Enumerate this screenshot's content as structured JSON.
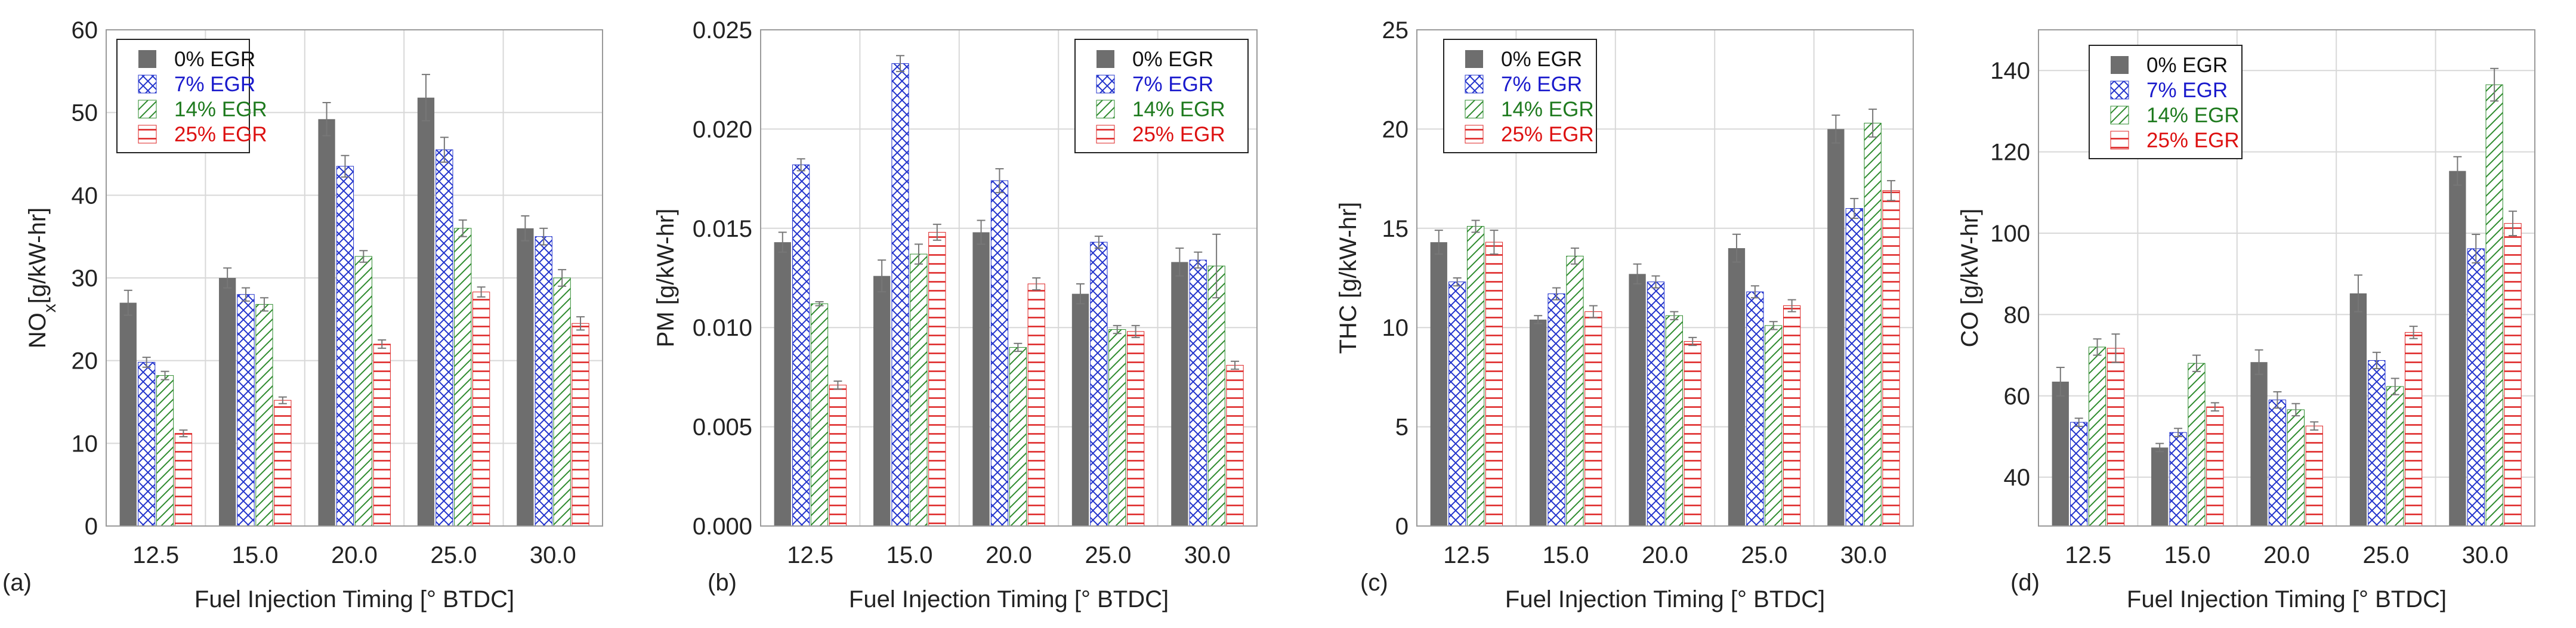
{
  "series_styles": [
    {
      "name": "0% EGR",
      "fill": "#6e6e6e",
      "stroke": "#555555",
      "text": "#111111",
      "pattern": "solid"
    },
    {
      "name": "7% EGR",
      "fill": "#ffffff",
      "stroke": "#2233cc",
      "text": "#1a1acc",
      "pattern": "cross"
    },
    {
      "name": "14% EGR",
      "fill": "#ffffff",
      "stroke": "#2e8b2e",
      "text": "#1e7a1e",
      "pattern": "diag"
    },
    {
      "name": "25% EGR",
      "fill": "#ffffff",
      "stroke": "#dd2222",
      "text": "#dd1111",
      "pattern": "horiz"
    }
  ],
  "chart_data": [
    {
      "panel": "(a)",
      "type": "bar",
      "categories": [
        "12.5",
        "15.0",
        "20.0",
        "25.0",
        "30.0"
      ],
      "xlabel": "Fuel Injection Timing [° BTDC]",
      "ylabel": "NO",
      "ylabel_sub": "x",
      "ylabel_tail": "[g/kW-hr]",
      "ylim": [
        0,
        60
      ],
      "yticks": [
        "0",
        "10",
        "20",
        "30",
        "40",
        "50",
        "60"
      ],
      "yticks_values": [
        0,
        10,
        20,
        30,
        40,
        50,
        60
      ],
      "legend": "top-left",
      "grid": true,
      "series": [
        {
          "name": "0% EGR",
          "values": [
            27.0,
            30.0,
            49.2,
            51.8,
            36.0
          ],
          "errors": [
            1.5,
            1.2,
            2.0,
            2.8,
            1.5
          ]
        },
        {
          "name": "7% EGR",
          "values": [
            19.8,
            28.0,
            43.5,
            45.5,
            35.0
          ],
          "errors": [
            0.6,
            0.8,
            1.3,
            1.5,
            1.0
          ]
        },
        {
          "name": "14% EGR",
          "values": [
            18.2,
            26.8,
            32.6,
            36.0,
            30.0
          ],
          "errors": [
            0.5,
            0.8,
            0.7,
            1.0,
            1.0
          ]
        },
        {
          "name": "25% EGR",
          "values": [
            11.2,
            15.2,
            22.0,
            28.3,
            24.5
          ],
          "errors": [
            0.4,
            0.4,
            0.5,
            0.6,
            0.8
          ]
        }
      ]
    },
    {
      "panel": "(b)",
      "type": "bar",
      "categories": [
        "12.5",
        "15.0",
        "20.0",
        "25.0",
        "30.0"
      ],
      "xlabel": "Fuel Injection Timing [° BTDC]",
      "ylabel": "PM [g/kW-hr]",
      "ylabel_sub": "",
      "ylabel_tail": "",
      "ylim": [
        0,
        0.025
      ],
      "yticks": [
        "0.000",
        "0.005",
        "0.010",
        "0.015",
        "0.020",
        "0.025"
      ],
      "yticks_values": [
        0,
        0.005,
        0.01,
        0.015,
        0.02,
        0.025
      ],
      "legend": "top-right",
      "grid": true,
      "series": [
        {
          "name": "0% EGR",
          "values": [
            0.0143,
            0.0126,
            0.0148,
            0.0117,
            0.0133
          ],
          "errors": [
            0.0005,
            0.0008,
            0.0006,
            0.0005,
            0.0007
          ]
        },
        {
          "name": "7% EGR",
          "values": [
            0.0182,
            0.0233,
            0.0174,
            0.0143,
            0.0134
          ],
          "errors": [
            0.0003,
            0.0004,
            0.0006,
            0.0003,
            0.0004
          ]
        },
        {
          "name": "14% EGR",
          "values": [
            0.0112,
            0.0137,
            0.009,
            0.0099,
            0.0131
          ],
          "errors": [
            0.0001,
            0.0005,
            0.0002,
            0.0002,
            0.0016
          ]
        },
        {
          "name": "25% EGR",
          "values": [
            0.0071,
            0.0148,
            0.0122,
            0.0098,
            0.0081
          ],
          "errors": [
            0.0002,
            0.0004,
            0.0003,
            0.0003,
            0.0002
          ]
        }
      ]
    },
    {
      "panel": "(c)",
      "type": "bar",
      "categories": [
        "12.5",
        "15.0",
        "20.0",
        "25.0",
        "30.0"
      ],
      "xlabel": "Fuel Injection Timing [° BTDC]",
      "ylabel": "THC [g/kW-hr]",
      "ylabel_sub": "",
      "ylabel_tail": "",
      "ylim": [
        0,
        25
      ],
      "yticks": [
        "0",
        "5",
        "10",
        "15",
        "20",
        "25"
      ],
      "yticks_values": [
        0,
        5,
        10,
        15,
        20,
        25
      ],
      "legend": "top-left",
      "grid": true,
      "series": [
        {
          "name": "0% EGR",
          "values": [
            14.3,
            10.4,
            12.7,
            14.0,
            20.0
          ],
          "errors": [
            0.6,
            0.2,
            0.5,
            0.7,
            0.7
          ]
        },
        {
          "name": "7% EGR",
          "values": [
            12.3,
            11.7,
            12.3,
            11.8,
            16.0
          ],
          "errors": [
            0.2,
            0.3,
            0.3,
            0.3,
            0.5
          ]
        },
        {
          "name": "14% EGR",
          "values": [
            15.1,
            13.6,
            10.6,
            10.1,
            20.3
          ],
          "errors": [
            0.3,
            0.4,
            0.2,
            0.2,
            0.7
          ]
        },
        {
          "name": "25% EGR",
          "values": [
            14.3,
            10.8,
            9.3,
            11.1,
            16.9
          ],
          "errors": [
            0.6,
            0.3,
            0.2,
            0.3,
            0.5
          ]
        }
      ]
    },
    {
      "panel": "(d)",
      "type": "bar",
      "categories": [
        "12.5",
        "15.0",
        "20.0",
        "25.0",
        "30.0"
      ],
      "xlabel": "Fuel Injection Timing [° BTDC]",
      "ylabel": "CO [g/kW-hr]",
      "ylabel_sub": "",
      "ylabel_tail": "",
      "ylim": [
        28,
        150
      ],
      "yticks": [
        "40",
        "60",
        "80",
        "100",
        "120",
        "140"
      ],
      "yticks_values": [
        40,
        60,
        80,
        100,
        120,
        140
      ],
      "legend": "top-left",
      "grid": true,
      "series": [
        {
          "name": "0% EGR",
          "values": [
            63.5,
            47.3,
            68.3,
            85.2,
            115.3
          ],
          "errors": [
            3.5,
            1.0,
            3.0,
            4.5,
            3.5
          ]
        },
        {
          "name": "7% EGR",
          "values": [
            53.5,
            51.0,
            59.0,
            68.7,
            96.2
          ],
          "errors": [
            1.0,
            1.0,
            2.0,
            2.0,
            3.5
          ]
        },
        {
          "name": "14% EGR",
          "values": [
            72.0,
            68.0,
            56.6,
            62.3,
            136.5
          ],
          "errors": [
            2.0,
            2.0,
            1.5,
            2.0,
            4.0
          ]
        },
        {
          "name": "25% EGR",
          "values": [
            71.7,
            57.3,
            52.6,
            75.6,
            102.4
          ],
          "errors": [
            3.5,
            1.0,
            1.0,
            1.5,
            3.0
          ]
        }
      ]
    }
  ]
}
